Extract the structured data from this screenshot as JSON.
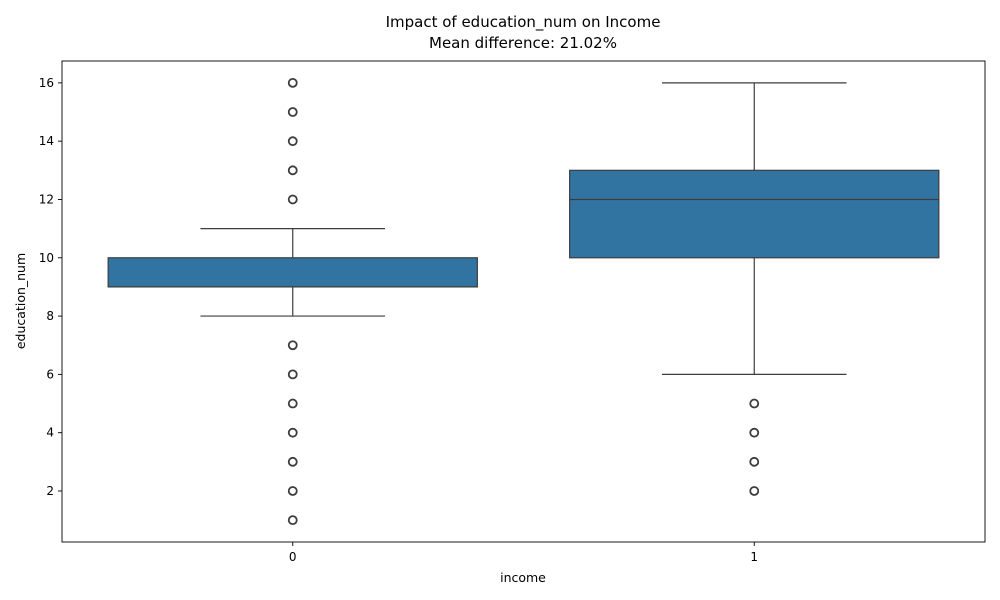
{
  "chart_data": {
    "type": "box",
    "title": "Impact of education_num on Income",
    "subtitle": "Mean difference: 21.02%",
    "xlabel": "income",
    "ylabel": "education_num",
    "categories": [
      "0",
      "1"
    ],
    "ylim": [
      0.25,
      16.75
    ],
    "yticks": [
      2,
      4,
      6,
      8,
      10,
      12,
      14,
      16
    ],
    "ytick_labels": [
      "2",
      "4",
      "6",
      "8",
      "10",
      "12",
      "14",
      "16"
    ],
    "box_color": "#3274a1",
    "edge_color": "#3d3d3d",
    "grid": false,
    "boxes": [
      {
        "category": "0",
        "whisker_low": 8,
        "q1": 9,
        "median": 9,
        "q3": 10,
        "whisker_high": 11,
        "outliers": [
          1,
          2,
          3,
          4,
          5,
          6,
          7,
          12,
          13,
          14,
          15,
          16
        ]
      },
      {
        "category": "1",
        "whisker_low": 6,
        "q1": 10,
        "median": 12,
        "q3": 13,
        "whisker_high": 16,
        "outliers": [
          2,
          3,
          4,
          5
        ]
      }
    ]
  }
}
